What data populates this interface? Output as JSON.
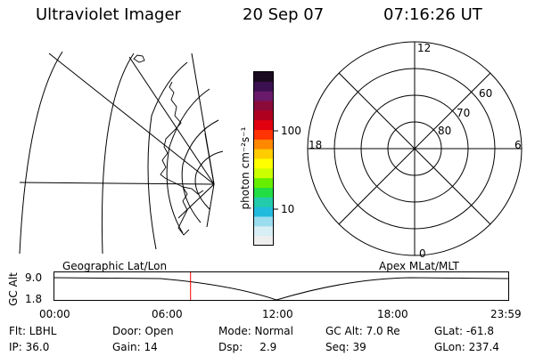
{
  "header": {
    "title": "Ultraviolet Imager",
    "date": "20 Sep 07",
    "time": "07:16:26 UT"
  },
  "colorbar": {
    "label": "photon cm⁻²s⁻¹",
    "ticks": [
      "100",
      "10"
    ],
    "colors": [
      "#1a0a1f",
      "#3a1050",
      "#6a1a6a",
      "#8a0a3a",
      "#b00020",
      "#e00010",
      "#ff3300",
      "#ff8800",
      "#ffcc00",
      "#ffff00",
      "#ccff00",
      "#66ee00",
      "#22dd44",
      "#22ccaa",
      "#22bbdd",
      "#99ddee",
      "#d6eef4",
      "#eeeeee"
    ]
  },
  "polar_plot": {
    "mlt_labels": {
      "top": "12",
      "bottom": "0",
      "left": "18",
      "right": "6"
    },
    "lat_labels": [
      "60",
      "70",
      "80"
    ]
  },
  "timeline": {
    "left_label": "Geographic Lat/Lon",
    "right_label": "Apex MLat/MLT",
    "axis_label": "GC Alt",
    "ytick_top": "9.0",
    "ytick_bottom": "1.8",
    "xticks": [
      "00:00",
      "06:00",
      "12:00",
      "18:00",
      "23:59"
    ],
    "marker_fraction": 0.3,
    "marker_color": "#ff0000"
  },
  "status": {
    "row1": [
      "Flt: LBHL",
      "Door: Open",
      "Mode: Normal",
      "GC Alt: 7.0 Re",
      "GLat: -61.8"
    ],
    "row2": [
      "IP: 36.0",
      "Gain: 14",
      "Dsp:     2.9",
      "Seq: 39",
      "GLon: 237.4"
    ]
  }
}
